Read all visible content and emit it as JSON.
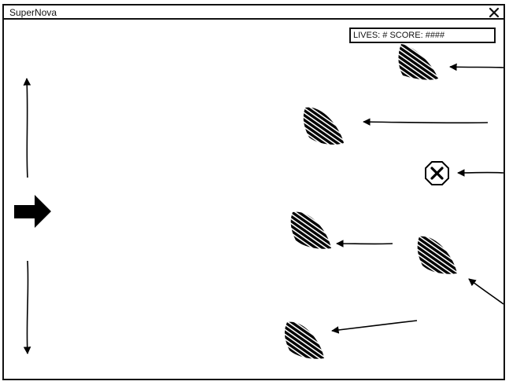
{
  "window": {
    "title": "SuperNova"
  },
  "hud": {
    "text": "LIVES: # SCORE: ####"
  },
  "icons": {
    "close": "close-icon",
    "player_ship": "arrow-ship-icon",
    "move_up": "arrow-up-icon",
    "move_down": "arrow-down-icon",
    "asteroid": "asteroid-icon",
    "mine": "octagon-x-icon"
  }
}
